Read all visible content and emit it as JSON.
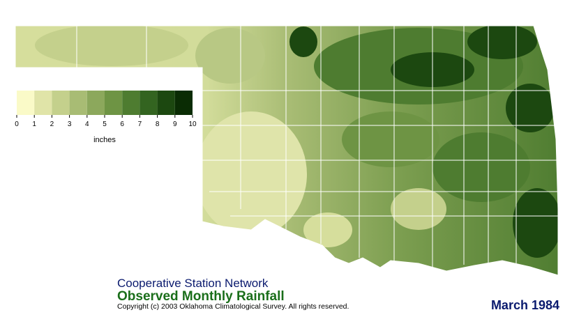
{
  "legend": {
    "colors": [
      "#fafac8",
      "#e0e4a8",
      "#c4d08c",
      "#a8bc74",
      "#8ca85c",
      "#6e9444",
      "#4e7c30",
      "#336420",
      "#1c4810",
      "#0a2c04"
    ],
    "ticks": [
      0,
      1,
      2,
      3,
      4,
      5,
      6,
      7,
      8,
      9,
      10
    ],
    "unit": "inches"
  },
  "header": {
    "network": "Cooperative Station Network",
    "product": "Observed Monthly Rainfall",
    "copyright": "Copyright (c) 2003 Oklahoma Climatological Survey. All rights reserved.",
    "period": "March 1984"
  }
}
